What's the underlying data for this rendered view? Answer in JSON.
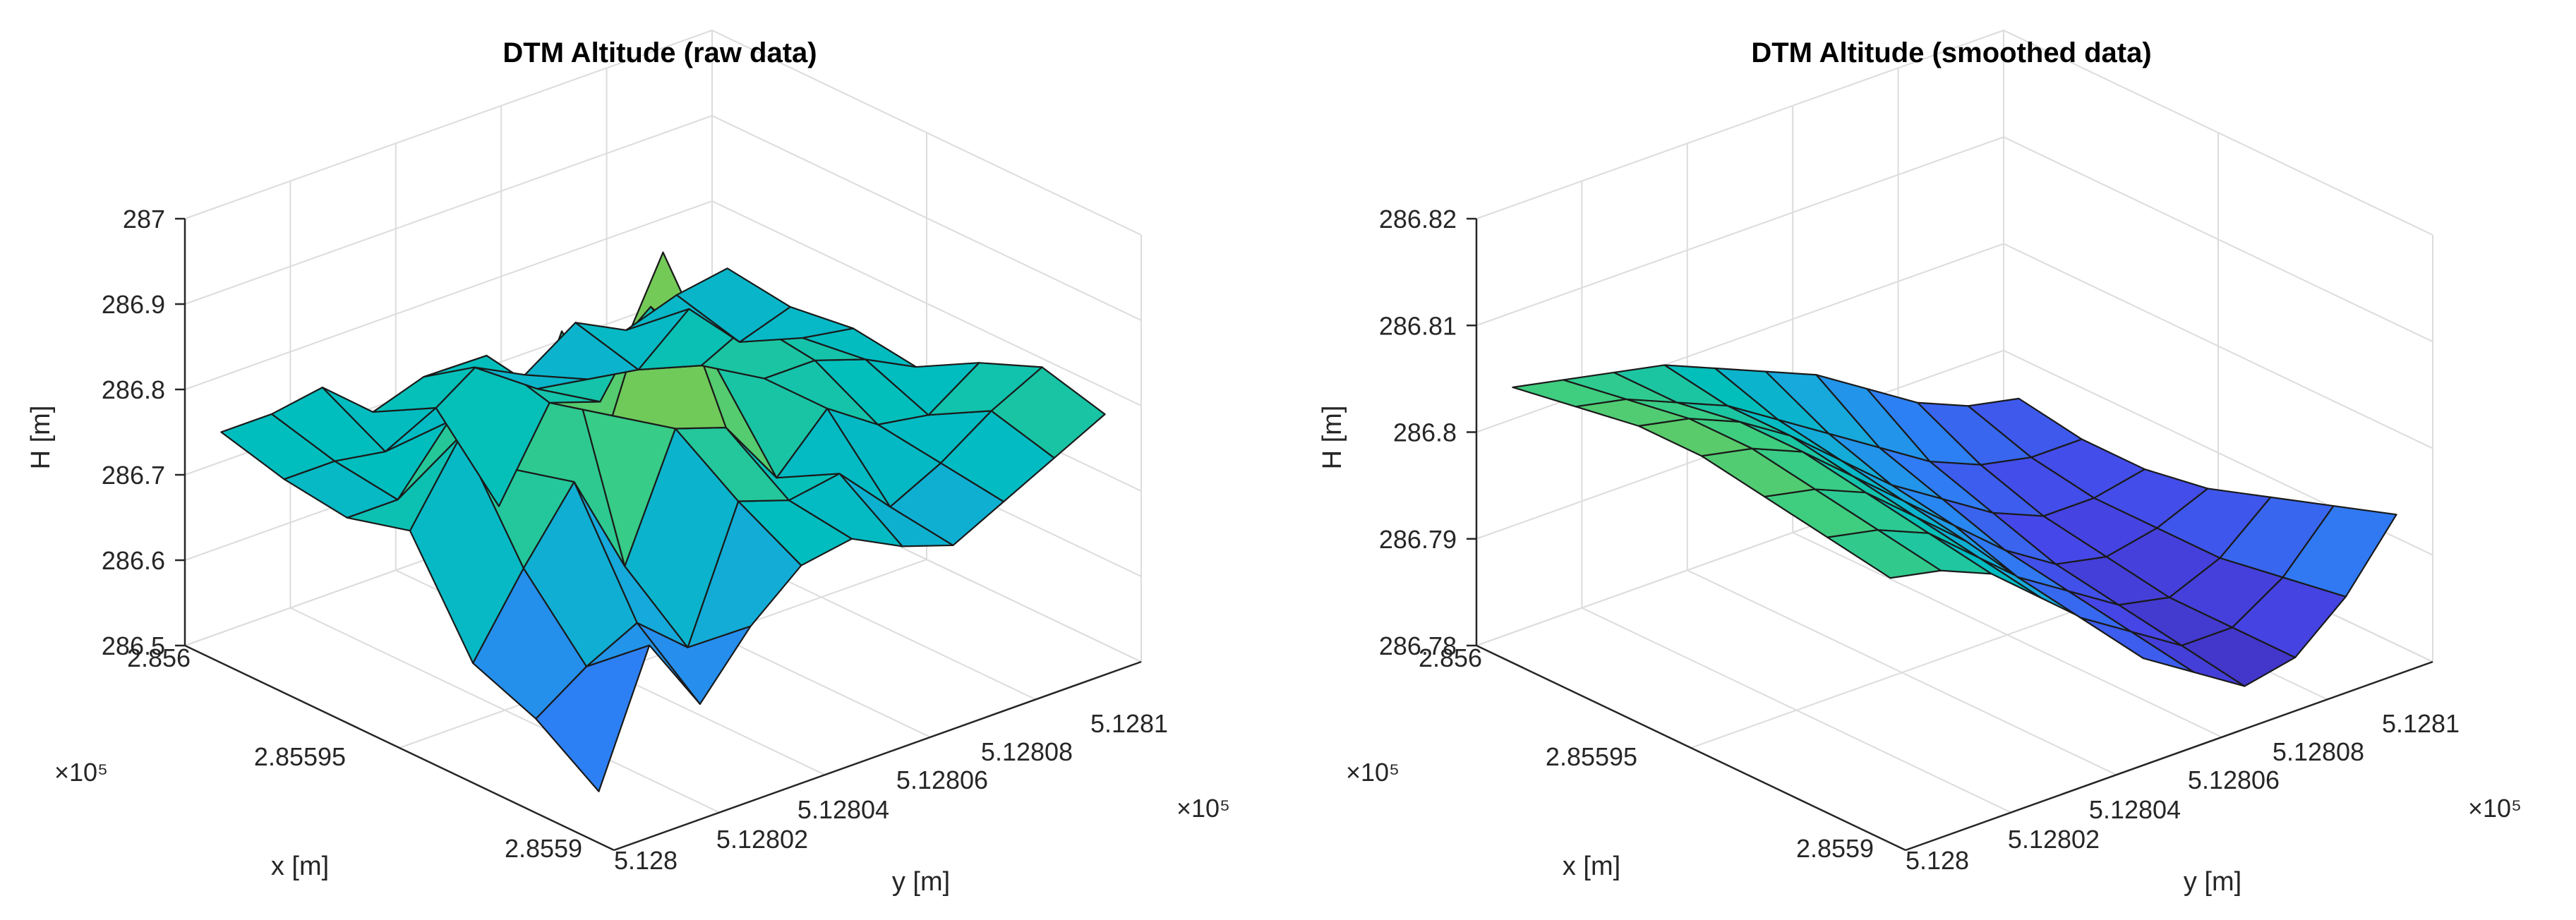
{
  "chart_data": [
    {
      "type": "surface",
      "title": "DTM Altitude (raw data)",
      "xlabel": "x [m]",
      "ylabel": "y [m]",
      "zlabel": "H [m]",
      "x_ticks": [
        "2.856",
        "2.85595",
        "2.8559"
      ],
      "x_exponent": "×10⁵",
      "y_ticks": [
        "5.128",
        "5.12802",
        "5.12804",
        "5.12806",
        "5.12808",
        "5.1281"
      ],
      "y_exponent": "×10⁵",
      "z_ticks": [
        "286.5",
        "286.6",
        "286.7",
        "286.8",
        "286.9",
        "287"
      ],
      "zlim": [
        286.5,
        287.0
      ],
      "grid": true,
      "colormap": "parula",
      "z": [
        [
          286.76,
          286.76,
          286.77,
          286.72,
          286.74,
          286.73,
          286.7,
          286.74,
          286.71,
          286.73,
          286.74
        ],
        [
          286.74,
          286.74,
          286.73,
          286.76,
          286.8,
          286.74,
          286.73,
          286.72,
          286.77,
          286.71,
          286.73
        ],
        [
          286.73,
          286.73,
          286.8,
          286.68,
          286.78,
          286.76,
          286.85,
          286.76,
          286.79,
          286.75,
          286.74
        ],
        [
          286.75,
          286.84,
          286.78,
          286.92,
          286.8,
          286.97,
          286.82,
          286.78,
          286.78,
          286.76,
          286.73
        ],
        [
          286.63,
          286.72,
          286.8,
          286.68,
          286.82,
          286.8,
          286.72,
          286.78,
          286.74,
          286.73,
          286.77
        ],
        [
          286.6,
          286.64,
          286.67,
          286.62,
          286.77,
          286.75,
          286.76,
          286.7,
          286.73,
          286.77,
          286.8
        ],
        [
          286.55,
          286.7,
          286.61,
          286.68,
          286.73,
          286.74,
          286.71,
          286.69,
          286.72,
          286.75,
          286.78
        ]
      ]
    },
    {
      "type": "surface",
      "title": "DTM Altitude (smoothed data)",
      "xlabel": "x [m]",
      "ylabel": "y [m]",
      "zlabel": "H [m]",
      "x_ticks": [
        "2.856",
        "2.85595",
        "2.8559"
      ],
      "x_exponent": "×10⁵",
      "y_ticks": [
        "5.128",
        "5.12802",
        "5.12804",
        "5.12806",
        "5.12808",
        "5.1281"
      ],
      "y_exponent": "×10⁵",
      "z_ticks": [
        "286.78",
        "286.79",
        "286.8",
        "286.81",
        "286.82"
      ],
      "zlim": [
        286.78,
        286.82
      ],
      "grid": true,
      "colormap": "parula",
      "z": [
        [
          286.805,
          286.804,
          286.803,
          286.802,
          286.8,
          286.798,
          286.796,
          286.793,
          286.79,
          286.788,
          286.787
        ],
        [
          286.806,
          286.805,
          286.803,
          286.801,
          286.798,
          286.795,
          286.792,
          286.789,
          286.787,
          286.786,
          286.786
        ],
        [
          286.807,
          286.806,
          286.804,
          286.801,
          286.797,
          286.793,
          286.79,
          286.787,
          286.785,
          286.785,
          286.786
        ],
        [
          286.807,
          286.806,
          286.804,
          286.8,
          286.796,
          286.792,
          286.788,
          286.785,
          286.784,
          286.785,
          286.787
        ],
        [
          286.806,
          286.805,
          286.803,
          286.799,
          286.795,
          286.79,
          286.787,
          286.784,
          286.783,
          286.785,
          286.789
        ],
        [
          286.805,
          286.804,
          286.802,
          286.798,
          286.794,
          286.789,
          286.786,
          286.783,
          286.783,
          286.786,
          286.791
        ],
        [
          286.804,
          286.803,
          286.801,
          286.797,
          286.793,
          286.788,
          286.785,
          286.782,
          286.783,
          286.787,
          286.793
        ]
      ]
    }
  ]
}
